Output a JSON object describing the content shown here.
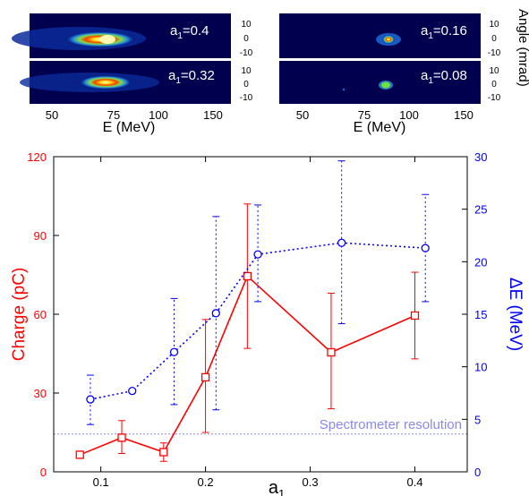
{
  "spectra": {
    "panels": [
      {
        "label_a": "a",
        "label_sub": "1",
        "label_val": "=0.4"
      },
      {
        "label_a": "a",
        "label_sub": "1",
        "label_val": "=0.16"
      },
      {
        "label_a": "a",
        "label_sub": "1",
        "label_val": "=0.32"
      },
      {
        "label_a": "a",
        "label_sub": "1",
        "label_val": "=0.08"
      }
    ],
    "angle_ticks": [
      "10",
      "0",
      "-10"
    ],
    "energy_ticks": [
      "50",
      "75",
      "100",
      "150"
    ],
    "energy_label": "E (MeV)",
    "angle_label": "Angle (mrad)"
  },
  "chart_data": {
    "type": "line",
    "xlabel_main": "a",
    "xlabel_sub": "1",
    "xlim": [
      0.055,
      0.45
    ],
    "x_ticks": [
      "0.1",
      "0.2",
      "0.3",
      "0.4"
    ],
    "ylabel_left": "Charge (pC)",
    "ylim_left": [
      0,
      120
    ],
    "y_ticks_left": [
      "0",
      "30",
      "60",
      "90",
      "120"
    ],
    "ylabel_right": "ΔE (MeV)",
    "ylim_right": [
      0,
      30
    ],
    "y_ticks_right": [
      "0",
      "5",
      "10",
      "15",
      "20",
      "25",
      "30"
    ],
    "colors": {
      "charge": "#ff0000",
      "delta_e": "#0000ff",
      "resolution": "#8888ee"
    },
    "series": [
      {
        "name": "Charge (pC)",
        "axis": "left",
        "marker": "square",
        "line": "solid",
        "x": [
          0.08,
          0.12,
          0.16,
          0.2,
          0.24,
          0.32,
          0.4
        ],
        "y": [
          6.5,
          13,
          7.5,
          36,
          74.5,
          45.5,
          59.5
        ],
        "err_low": [
          6.5,
          7,
          4,
          15,
          47,
          24,
          43
        ],
        "err_high": [
          6.5,
          19.5,
          11,
          58,
          102,
          68,
          76
        ]
      },
      {
        "name": "ΔE (MeV)",
        "axis": "right",
        "marker": "circle",
        "line": "dotted",
        "x": [
          0.09,
          0.13,
          0.17,
          0.21,
          0.25,
          0.33,
          0.41
        ],
        "y": [
          6.9,
          7.7,
          11.4,
          15.1,
          20.7,
          21.8,
          21.3
        ],
        "err_low": [
          4.5,
          7.7,
          6.4,
          5.9,
          16.2,
          14.1,
          16.2
        ],
        "err_high": [
          9.2,
          7.7,
          16.5,
          24.3,
          25.4,
          29.6,
          26.4
        ]
      }
    ],
    "reference_line": {
      "label": "Spectrometer resolution",
      "axis": "right",
      "value": 3.6
    }
  }
}
